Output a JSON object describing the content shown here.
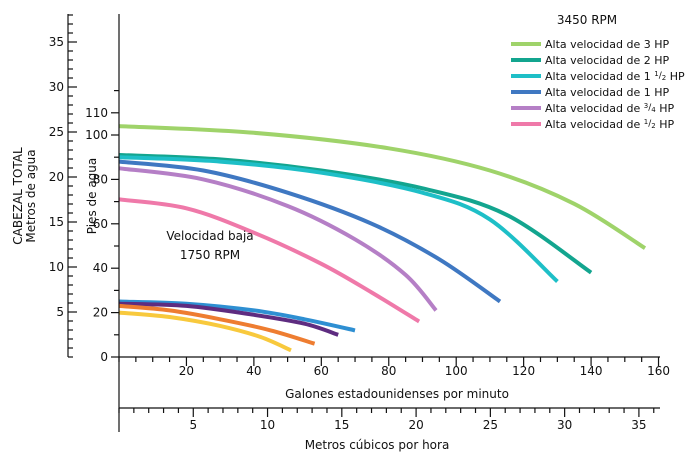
{
  "chart_data": {
    "type": "line",
    "title": "3450 RPM",
    "annotation_low_speed": [
      "Velocidad baja",
      "1750 RPM"
    ],
    "x_axis_gpm": {
      "label": "Galones estadounidenses por minuto",
      "ticks": [
        20,
        40,
        60,
        80,
        100,
        120,
        140,
        160
      ],
      "range": [
        0,
        160
      ]
    },
    "x_axis_m3h": {
      "label": "Metros cúbicos por hora",
      "ticks": [
        5,
        10,
        15,
        20,
        25,
        30,
        35
      ]
    },
    "y_axis_feet": {
      "label": "Pies de agua",
      "ticks": [
        0,
        20,
        40,
        60,
        80,
        100,
        110
      ],
      "range": [
        0,
        120
      ]
    },
    "y_axis_meters": {
      "label_lines": [
        "CABEZAL TOTAL",
        "Metros de agua"
      ],
      "ticks": [
        5,
        10,
        15,
        20,
        25,
        30,
        35
      ]
    },
    "grid": false,
    "legend_position": "top-right",
    "series": [
      {
        "name": "Alta velocidad de 3 HP",
        "label_parts": [
          "Alta velocidad de 3 HP"
        ],
        "color": "#9fd36a",
        "x": [
          0,
          40,
          80,
          110,
          135,
          156
        ],
        "y": [
          104,
          101,
          94,
          84,
          69,
          49
        ]
      },
      {
        "name": "Alta velocidad de 2 HP",
        "label_parts": [
          "Alta velocidad de 2 HP"
        ],
        "color": "#13a58f",
        "x": [
          0,
          30,
          60,
          90,
          115,
          140
        ],
        "y": [
          91,
          89,
          84,
          76,
          64,
          38
        ]
      },
      {
        "name": "Alta velocidad de 1 1/2 HP",
        "label_parts": [
          "Alta velocidad de 1 ",
          "1",
          "/",
          "2",
          " HP"
        ],
        "color": "#1ebfc7",
        "x": [
          0,
          30,
          60,
          90,
          110,
          130
        ],
        "y": [
          90,
          88,
          83,
          74,
          62,
          34
        ]
      },
      {
        "name": "Alta velocidad de 1 HP",
        "label_parts": [
          "Alta velocidad de 1 HP"
        ],
        "color": "#3f78c2",
        "x": [
          0,
          25,
          50,
          75,
          95,
          113
        ],
        "y": [
          88,
          84,
          74,
          60,
          44,
          25
        ]
      },
      {
        "name": "Alta velocidad de 3/4 HP",
        "label_parts": [
          "Alta velocidad de ",
          "3",
          "/",
          "4",
          " HP"
        ],
        "color": "#b57fc6",
        "x": [
          0,
          25,
          50,
          70,
          85,
          94
        ],
        "y": [
          85,
          80,
          68,
          53,
          37,
          21
        ]
      },
      {
        "name": "Alta velocidad de 1/2 HP",
        "label_parts": [
          "Alta velocidad de ",
          "1",
          "/",
          "2",
          " HP"
        ],
        "color": "#ef79a9",
        "x": [
          0,
          20,
          40,
          60,
          75,
          89
        ],
        "y": [
          71,
          67,
          56,
          42,
          29,
          16
        ]
      },
      {
        "color": "#2e8fd2",
        "x": [
          0,
          20,
          40,
          55,
          70
        ],
        "y": [
          25,
          24,
          21,
          17,
          12
        ]
      },
      {
        "color": "#5e2c80",
        "x": [
          0,
          20,
          40,
          55,
          65
        ],
        "y": [
          24,
          23,
          19,
          15,
          10
        ]
      },
      {
        "color": "#ee7d31",
        "x": [
          0,
          15,
          30,
          45,
          58
        ],
        "y": [
          23,
          21,
          17,
          12,
          6
        ]
      },
      {
        "color": "#f8c93d",
        "x": [
          0,
          15,
          30,
          42,
          51
        ],
        "y": [
          20,
          18,
          14,
          9,
          3
        ]
      }
    ]
  }
}
